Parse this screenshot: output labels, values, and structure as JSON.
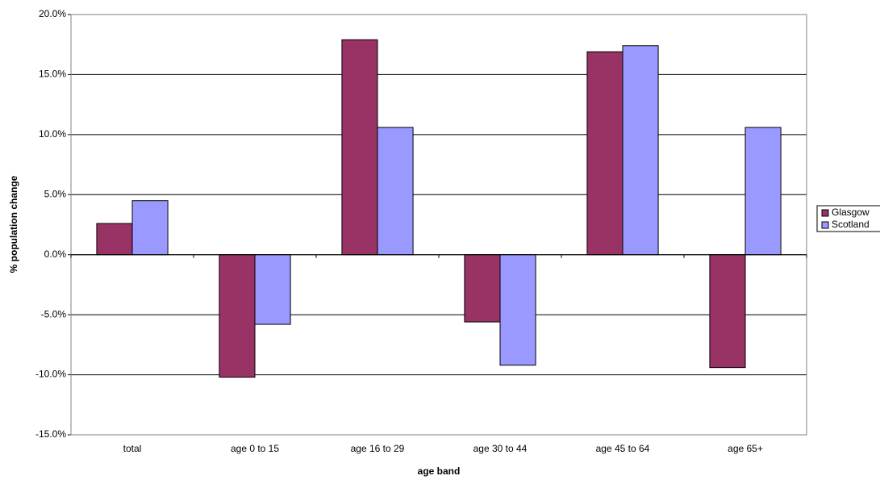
{
  "chart_data": {
    "type": "bar",
    "x_label": "age band",
    "y_label": "% population change",
    "categories": [
      "total",
      "age 0 to 15",
      "age 16 to 29",
      "age 30 to 44",
      "age 45 to 64",
      "age 65+"
    ],
    "series": [
      {
        "name": "Glasgow",
        "color": "#993366",
        "values": [
          2.6,
          -10.2,
          17.9,
          -5.6,
          16.9,
          -9.4
        ]
      },
      {
        "name": "Scotland",
        "color": "#9999ff",
        "values": [
          4.5,
          -5.8,
          10.6,
          -9.2,
          17.4,
          10.6
        ]
      }
    ],
    "ylim": [
      -15,
      20
    ],
    "yticks": [
      {
        "value": -15,
        "label": "-15.0%"
      },
      {
        "value": -10,
        "label": "-10.0%"
      },
      {
        "value": -5,
        "label": "-5.0%"
      },
      {
        "value": 0,
        "label": "0.0%"
      },
      {
        "value": 5,
        "label": "5.0%"
      },
      {
        "value": 10,
        "label": "10.0%"
      },
      {
        "value": 15,
        "label": "15.0%"
      },
      {
        "value": 20,
        "label": "20.0%"
      }
    ],
    "grid": true,
    "legend": "right"
  }
}
